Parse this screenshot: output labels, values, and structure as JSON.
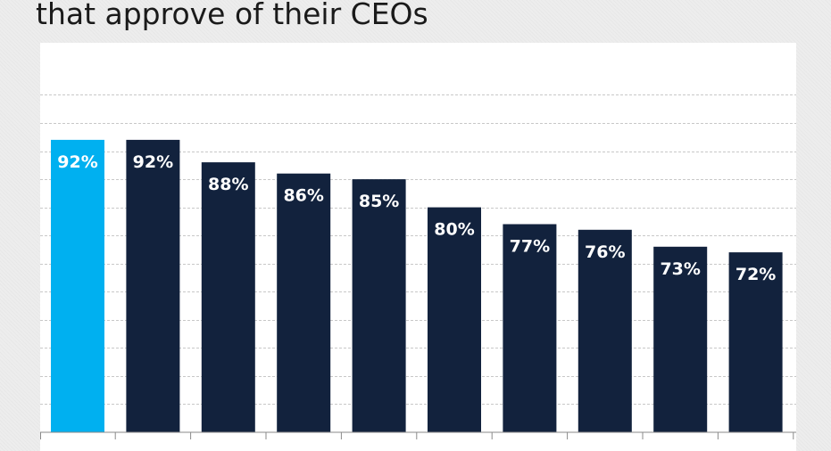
{
  "chart_data": {
    "type": "bar",
    "title": "that approve of their CEOs",
    "categories": [
      "",
      "",
      "",
      "",
      "",
      "",
      "",
      "",
      "",
      ""
    ],
    "values": [
      92,
      92,
      88,
      86,
      85,
      80,
      77,
      76,
      73,
      72
    ],
    "data_labels": [
      "92%",
      "92%",
      "88%",
      "86%",
      "85%",
      "80%",
      "77%",
      "76%",
      "73%",
      "72%"
    ],
    "highlight_index": 0,
    "ylim": [
      40,
      100
    ],
    "grid": true,
    "colors": {
      "highlight": "#00b0f0",
      "bar": "#12223d",
      "grid": "#c8c8c8",
      "label": "#ffffff"
    }
  }
}
